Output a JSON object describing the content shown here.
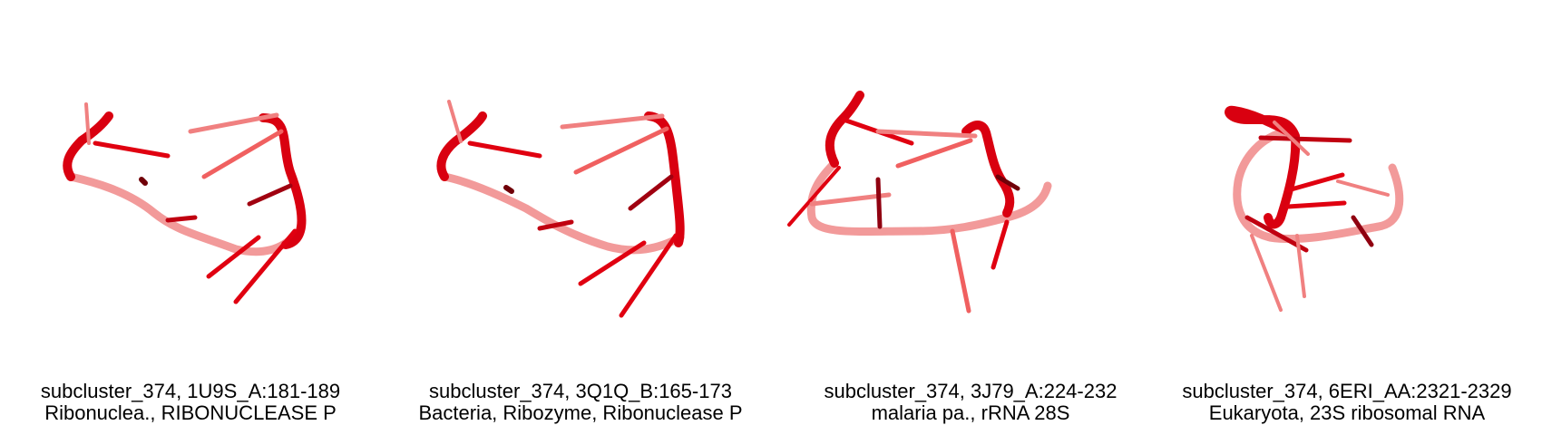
{
  "panels": [
    {
      "title": "subcluster_374, 1U9S_A:181-189",
      "subtitle": "Ribonuclea., RIBONUCLEASE P"
    },
    {
      "title": "subcluster_374, 3Q1Q_B:165-173",
      "subtitle": "Bacteria, Ribozyme, Ribonuclease P"
    },
    {
      "title": "subcluster_374, 3J79_A:224-232",
      "subtitle": "malaria pa., rRNA 28S"
    },
    {
      "title": "subcluster_374, 6ERI_AA:2321-2329",
      "subtitle": "Eukaryota, 23S ribosomal RNA"
    }
  ],
  "colors": {
    "backbone": "#e0000f",
    "backbone_faded": "#f08080",
    "text": "#000000",
    "background": "#ffffff"
  }
}
